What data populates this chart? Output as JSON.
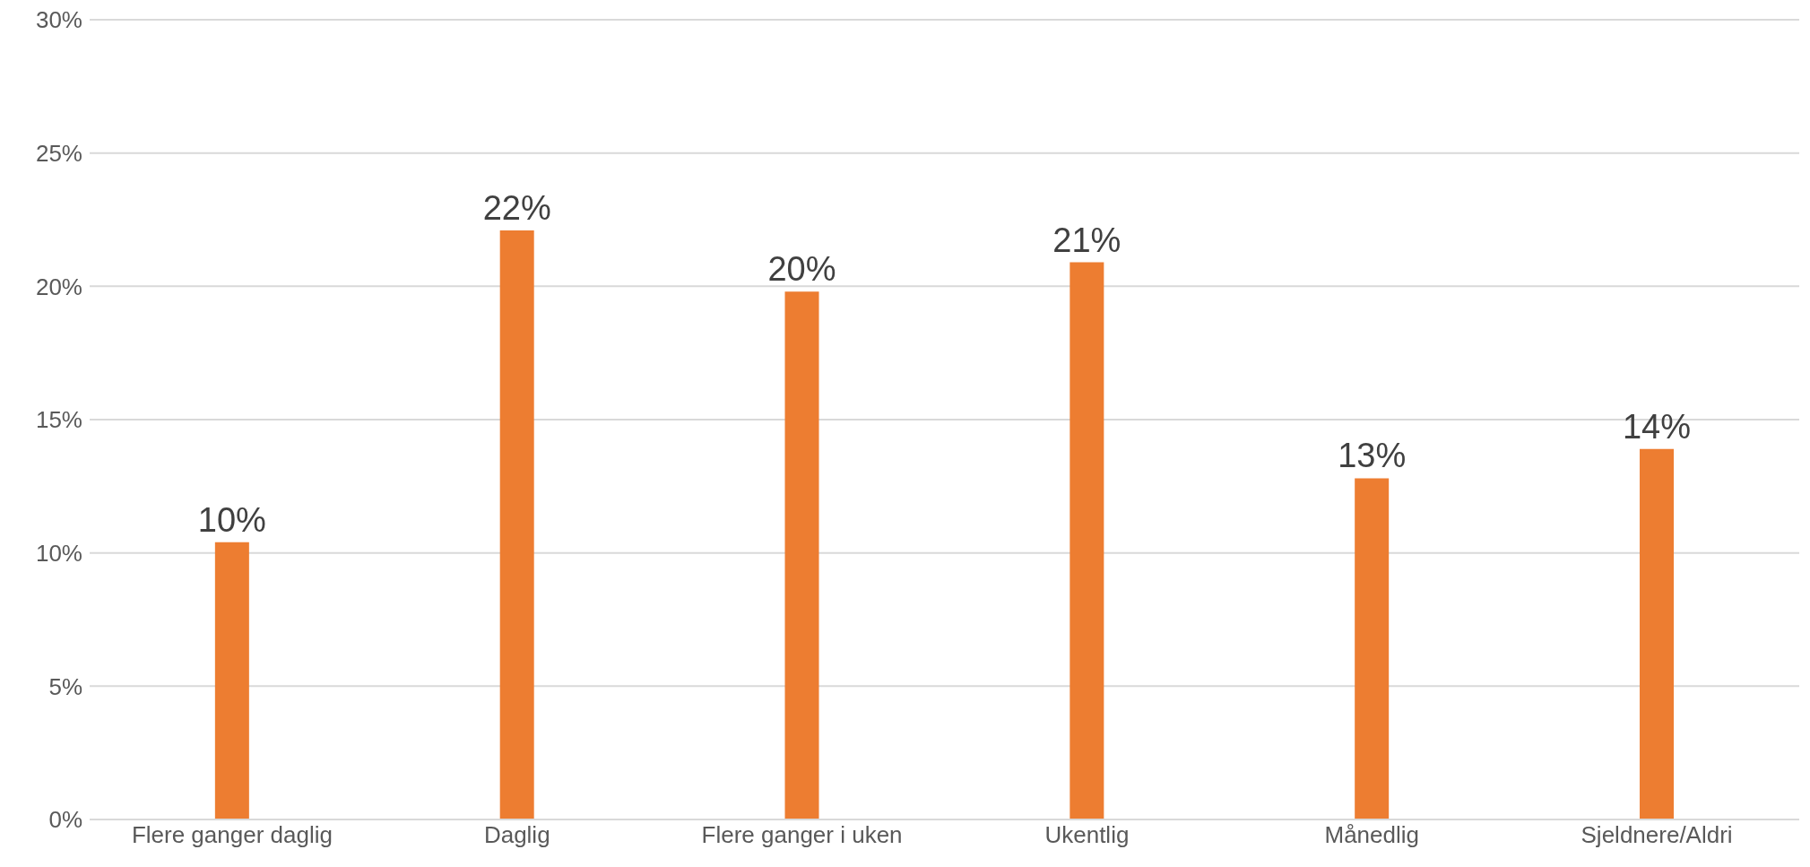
{
  "chart_data": {
    "type": "bar",
    "categories": [
      "Flere ganger daglig",
      "Daglig",
      "Flere ganger i uken",
      "Ukentlig",
      "Månedlig",
      "Sjeldnere/Aldri"
    ],
    "values": [
      10.4,
      22.1,
      19.8,
      20.9,
      12.8,
      13.9
    ],
    "value_labels": [
      "10%",
      "22%",
      "20%",
      "21%",
      "13%",
      "14%"
    ],
    "color": "#ed7d31",
    "ylim": [
      0,
      30
    ],
    "yticks": [
      {
        "value": 0,
        "label": "0%"
      },
      {
        "value": 5,
        "label": "5%"
      },
      {
        "value": 10,
        "label": "10%"
      },
      {
        "value": 15,
        "label": "15%"
      },
      {
        "value": 20,
        "label": "20%"
      },
      {
        "value": 25,
        "label": "25%"
      },
      {
        "value": 30,
        "label": "30%"
      }
    ],
    "grid": "y",
    "legend": false
  }
}
